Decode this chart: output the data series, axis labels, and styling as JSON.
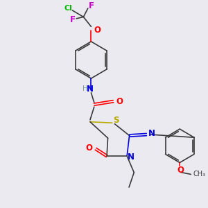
{
  "bg_color": "#eaeaf0",
  "atom_colors": {
    "C": "#3a3a3a",
    "H": "#7a9a9a",
    "N": "#0000e0",
    "O": "#ff0000",
    "S": "#bbaa00",
    "F": "#cc00cc",
    "Cl": "#00bb00"
  },
  "figsize": [
    3.0,
    3.0
  ],
  "dpi": 100
}
